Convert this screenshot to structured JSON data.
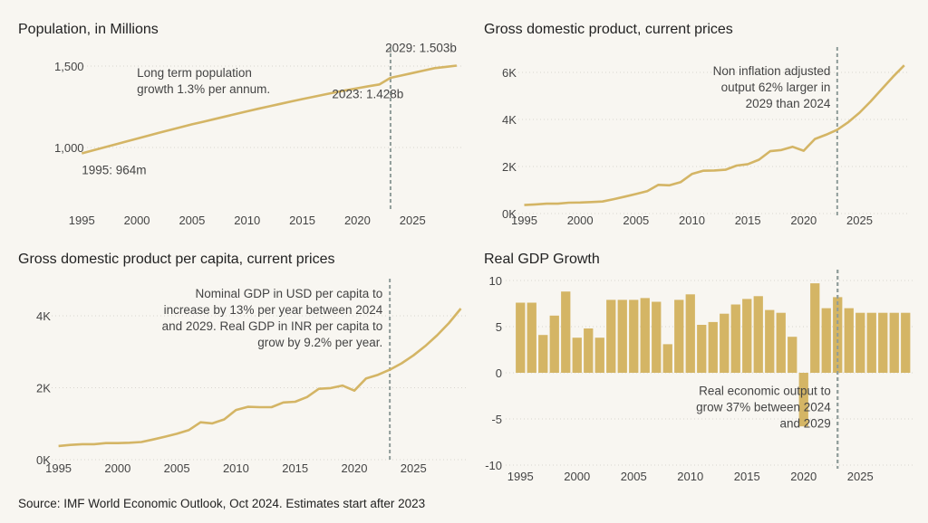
{
  "footer": {
    "source": "Source: IMF World Economic Outlook, Oct 2024. Estimates start after 2023"
  },
  "colors": {
    "series": "#d4b565",
    "marker": "#8f9c99",
    "grid": "#d9d6cf",
    "background": "#f8f6f1"
  },
  "chart_data": [
    {
      "id": "population",
      "type": "line",
      "title": "Population, in Millions",
      "xlim": [
        1993.5,
        2029.5
      ],
      "ylim": [
        900,
        1560
      ],
      "xticks": [
        1995,
        2000,
        2005,
        2010,
        2015,
        2020,
        2025
      ],
      "yticks": [
        1000,
        1500
      ],
      "ytick_labels": [
        "1,000",
        "1,500"
      ],
      "grid": "horizontal dotted",
      "estimate_marker_year": 2023,
      "series": [
        {
          "x": [
            1995,
            1996,
            1997,
            1998,
            1999,
            2000,
            2001,
            2002,
            2003,
            2004,
            2005,
            2006,
            2007,
            2008,
            2009,
            2010,
            2011,
            2012,
            2013,
            2014,
            2015,
            2016,
            2017,
            2018,
            2019,
            2020,
            2021,
            2022,
            2023,
            2024,
            2025,
            2026,
            2027,
            2028,
            2029
          ],
          "y": [
            964,
            982,
            1000,
            1018,
            1036,
            1054,
            1072,
            1090,
            1108,
            1125,
            1142,
            1158,
            1174,
            1190,
            1206,
            1222,
            1238,
            1253,
            1268,
            1283,
            1297,
            1311,
            1325,
            1339,
            1352,
            1364,
            1376,
            1387,
            1428,
            1442,
            1457,
            1472,
            1487,
            1495,
            1503
          ]
        }
      ],
      "annotations": [
        {
          "text_lines": [
            "Long term population",
            "growth 1.3% per annum."
          ],
          "x": 2000.0,
          "y": 1432,
          "anchor": "start"
        },
        {
          "text_lines": [
            "2029: 1.503b"
          ],
          "x": 2029.0,
          "y": 1586,
          "anchor": "end"
        },
        {
          "text_lines": [
            "2023: 1.428b"
          ],
          "x": 2017.7,
          "y": 1303,
          "anchor": "start"
        },
        {
          "text_lines": [
            "1995: 964m"
          ],
          "x": 1995.0,
          "y": 837,
          "anchor": "start"
        }
      ]
    },
    {
      "id": "gdp",
      "type": "line",
      "title": "Gross domestic product, current prices",
      "xlim": [
        1993.5,
        2029.5
      ],
      "ylim": [
        0,
        6800
      ],
      "xticks": [
        1995,
        2000,
        2005,
        2010,
        2015,
        2020,
        2025
      ],
      "yticks": [
        0,
        2000,
        4000,
        6000
      ],
      "ytick_labels": [
        "0K",
        "2K",
        "4K",
        "6K"
      ],
      "grid": "horizontal dotted",
      "estimate_marker_year": 2023,
      "series": [
        {
          "x": [
            1995,
            1996,
            1997,
            1998,
            1999,
            2000,
            2001,
            2002,
            2003,
            2004,
            2005,
            2006,
            2007,
            2008,
            2009,
            2010,
            2011,
            2012,
            2013,
            2014,
            2015,
            2016,
            2017,
            2018,
            2019,
            2020,
            2021,
            2022,
            2023,
            2024,
            2025,
            2026,
            2027,
            2028,
            2029
          ],
          "y": [
            360,
            390,
            420,
            420,
            460,
            470,
            490,
            510,
            610,
            720,
            830,
            950,
            1220,
            1200,
            1340,
            1680,
            1820,
            1830,
            1860,
            2040,
            2100,
            2290,
            2650,
            2700,
            2840,
            2670,
            3170,
            3350,
            3560,
            3890,
            4290,
            4770,
            5300,
            5820,
            6300
          ]
        }
      ],
      "annotations": [
        {
          "text_lines": [
            "Non inflation adjusted",
            "output 62% larger in",
            "2029 than 2024"
          ],
          "x": 2022.4,
          "y": 5890,
          "anchor": "end"
        }
      ]
    },
    {
      "id": "gdp_per_capita",
      "type": "line",
      "title": "Gross domestic product per capita, current prices",
      "xlim": [
        1993.5,
        2029.5
      ],
      "ylim": [
        0,
        4950
      ],
      "xticks": [
        1995,
        2000,
        2005,
        2010,
        2015,
        2020,
        2025
      ],
      "yticks": [
        0,
        2000,
        4000
      ],
      "ytick_labels": [
        "0K",
        "2K",
        "4K"
      ],
      "grid": "horizontal dotted",
      "estimate_marker_year": 2023,
      "series": [
        {
          "x": [
            1995,
            1996,
            1997,
            1998,
            1999,
            2000,
            2001,
            2002,
            2003,
            2004,
            2005,
            2006,
            2007,
            2008,
            2009,
            2010,
            2011,
            2012,
            2013,
            2014,
            2015,
            2016,
            2017,
            2018,
            2019,
            2020,
            2021,
            2022,
            2023,
            2024,
            2025,
            2026,
            2027,
            2028,
            2029
          ],
          "y": [
            380,
            410,
            430,
            430,
            460,
            460,
            470,
            490,
            560,
            640,
            720,
            820,
            1040,
            1010,
            1120,
            1380,
            1470,
            1460,
            1460,
            1590,
            1610,
            1740,
            1970,
            1990,
            2060,
            1920,
            2260,
            2360,
            2500,
            2680,
            2900,
            3160,
            3460,
            3800,
            4200
          ]
        }
      ],
      "annotations": [
        {
          "text_lines": [
            "Nominal GDP in USD per capita to",
            "increase by 13% per year between 2024",
            "and 2029. Real GDP in INR per capita to",
            "grow by 9.2% per year."
          ],
          "x": 2022.4,
          "y": 4500,
          "anchor": "end"
        }
      ]
    },
    {
      "id": "real_gdp_growth",
      "type": "bar",
      "title": "Real GDP Growth",
      "xlim": [
        1993.7,
        2029.7
      ],
      "ylim": [
        -10,
        10
      ],
      "xticks": [
        1995,
        2000,
        2005,
        2010,
        2015,
        2020,
        2025
      ],
      "yticks": [
        -10,
        -5,
        0,
        5,
        10
      ],
      "ytick_labels": [
        "-10",
        "-5",
        "0",
        "5",
        "10"
      ],
      "grid": "horizontal dotted",
      "estimate_marker_year": 2023,
      "categories": [
        1995,
        1996,
        1997,
        1998,
        1999,
        2000,
        2001,
        2002,
        2003,
        2004,
        2005,
        2006,
        2007,
        2008,
        2009,
        2010,
        2011,
        2012,
        2013,
        2014,
        2015,
        2016,
        2017,
        2018,
        2019,
        2020,
        2021,
        2022,
        2023,
        2024,
        2025,
        2026,
        2027,
        2028,
        2029
      ],
      "values": [
        7.6,
        7.6,
        4.1,
        6.2,
        8.8,
        3.8,
        4.8,
        3.8,
        7.9,
        7.9,
        7.9,
        8.1,
        7.7,
        3.1,
        7.9,
        8.5,
        5.2,
        5.5,
        6.4,
        7.4,
        8.0,
        8.3,
        6.8,
        6.5,
        3.9,
        -5.8,
        9.7,
        7.0,
        8.2,
        7.0,
        6.5,
        6.5,
        6.5,
        6.5,
        6.5
      ],
      "annotations": [
        {
          "text_lines": [
            "Real economic output to",
            "grow 37% between 2024",
            "and 2029"
          ],
          "x": 2022.4,
          "y": -2.4,
          "anchor": "end"
        }
      ]
    }
  ]
}
